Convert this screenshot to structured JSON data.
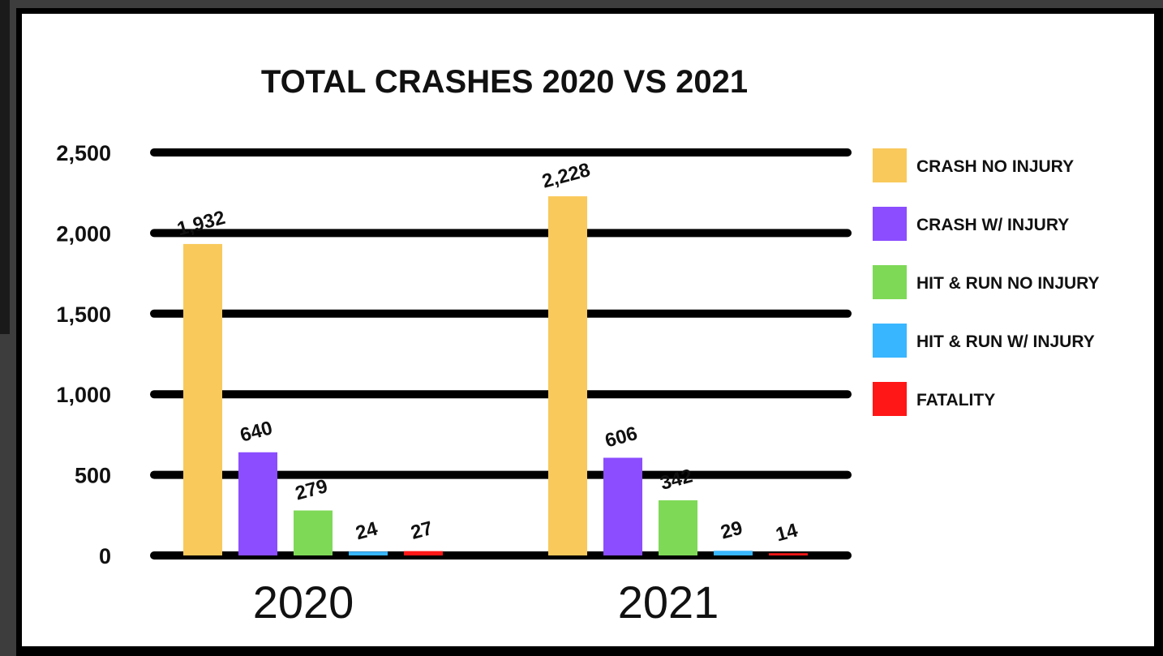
{
  "chart_data": {
    "type": "bar",
    "title": "TOTAL CRASHES 2020 VS 2021",
    "categories": [
      "2020",
      "2021"
    ],
    "series": [
      {
        "name": "CRASH NO INJURY",
        "color": "#f9c95b",
        "values": [
          1932,
          2228
        ],
        "labels": [
          "1,932",
          "2,228"
        ]
      },
      {
        "name": "CRASH W/ INJURY",
        "color": "#8b4dff",
        "values": [
          640,
          606
        ],
        "labels": [
          "640",
          "606"
        ]
      },
      {
        "name": "HIT & RUN NO INJURY",
        "color": "#7ed957",
        "values": [
          279,
          342
        ],
        "labels": [
          "279",
          "342"
        ]
      },
      {
        "name": "HIT & RUN W/ INJURY",
        "color": "#38b6ff",
        "values": [
          24,
          29
        ],
        "labels": [
          "24",
          "29"
        ]
      },
      {
        "name": "FATALITY",
        "color": "#ff1616",
        "values": [
          27,
          14
        ],
        "labels": [
          "27",
          "14"
        ]
      }
    ],
    "yticks": [
      {
        "value": 0,
        "label": "0"
      },
      {
        "value": 500,
        "label": "500"
      },
      {
        "value": 1000,
        "label": "1,000"
      },
      {
        "value": 1500,
        "label": "1,500"
      },
      {
        "value": 2000,
        "label": "2,000"
      },
      {
        "value": 2500,
        "label": "2,500"
      }
    ],
    "ylim": [
      0,
      2500
    ],
    "grid": true,
    "legend_position": "right"
  }
}
